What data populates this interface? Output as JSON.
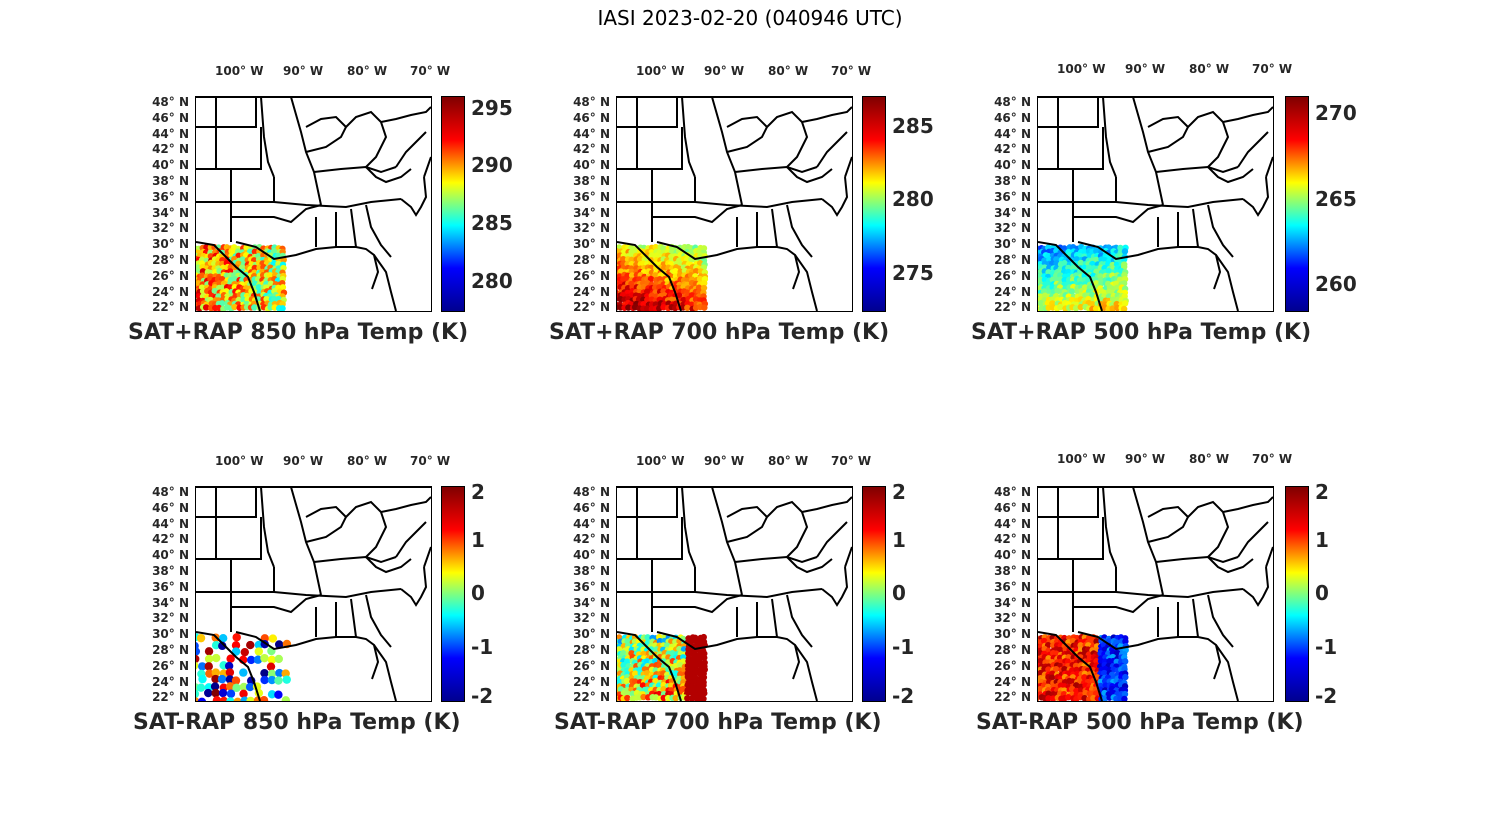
{
  "title": "IASI 2023-02-20 (040946 UTC)",
  "lon_labels": [
    "100° W",
    "90° W",
    "80° W",
    "70° W"
  ],
  "lat_labels": [
    "48° N",
    "46° N",
    "44° N",
    "42° N",
    "40° N",
    "38° N",
    "36° N",
    "34° N",
    "32° N",
    "30° N",
    "28° N",
    "26° N",
    "24° N",
    "22° N"
  ],
  "colormap": "jet",
  "panels": [
    {
      "title": "SAT+RAP 850 hPa Temp (K)",
      "cbar_ticks": [
        "295",
        "290",
        "285",
        "280"
      ],
      "cbar_range": [
        277.5,
        296
      ],
      "tick_values": [
        295,
        290,
        285,
        280
      ],
      "field": "warm-speckled"
    },
    {
      "title": "SAT+RAP 700 hPa Temp (K)",
      "cbar_ticks": [
        "285",
        "280",
        "275"
      ],
      "cbar_range": [
        272.5,
        287
      ],
      "tick_values": [
        285,
        280,
        275
      ],
      "field": "warm-south"
    },
    {
      "title": "SAT+RAP 500 hPa Temp (K)",
      "cbar_ticks": [
        "270",
        "265",
        "260"
      ],
      "cbar_range": [
        258.5,
        271
      ],
      "tick_values": [
        270,
        265,
        260
      ],
      "field": "cool-north"
    },
    {
      "title": "SAT-RAP 850 hPa Temp (K)",
      "cbar_ticks": [
        "2",
        "1",
        "0",
        "-1",
        "-2"
      ],
      "cbar_range": [
        -2,
        2
      ],
      "tick_values": [
        2,
        1,
        0,
        -1,
        -2
      ],
      "field": "sparse"
    },
    {
      "title": "SAT-RAP 700 hPa Temp (K)",
      "cbar_ticks": [
        "2",
        "1",
        "0",
        "-1",
        "-2"
      ],
      "cbar_range": [
        -2,
        2
      ],
      "tick_values": [
        2,
        1,
        0,
        -1,
        -2
      ],
      "field": "dense-diff"
    },
    {
      "title": "SAT-RAP 500 hPa Temp (K)",
      "cbar_ticks": [
        "2",
        "1",
        "0",
        "-1",
        "-2"
      ],
      "cbar_range": [
        -2,
        2
      ],
      "tick_values": [
        2,
        1,
        0,
        -1,
        -2
      ],
      "field": "red-west-blue-east"
    }
  ]
}
